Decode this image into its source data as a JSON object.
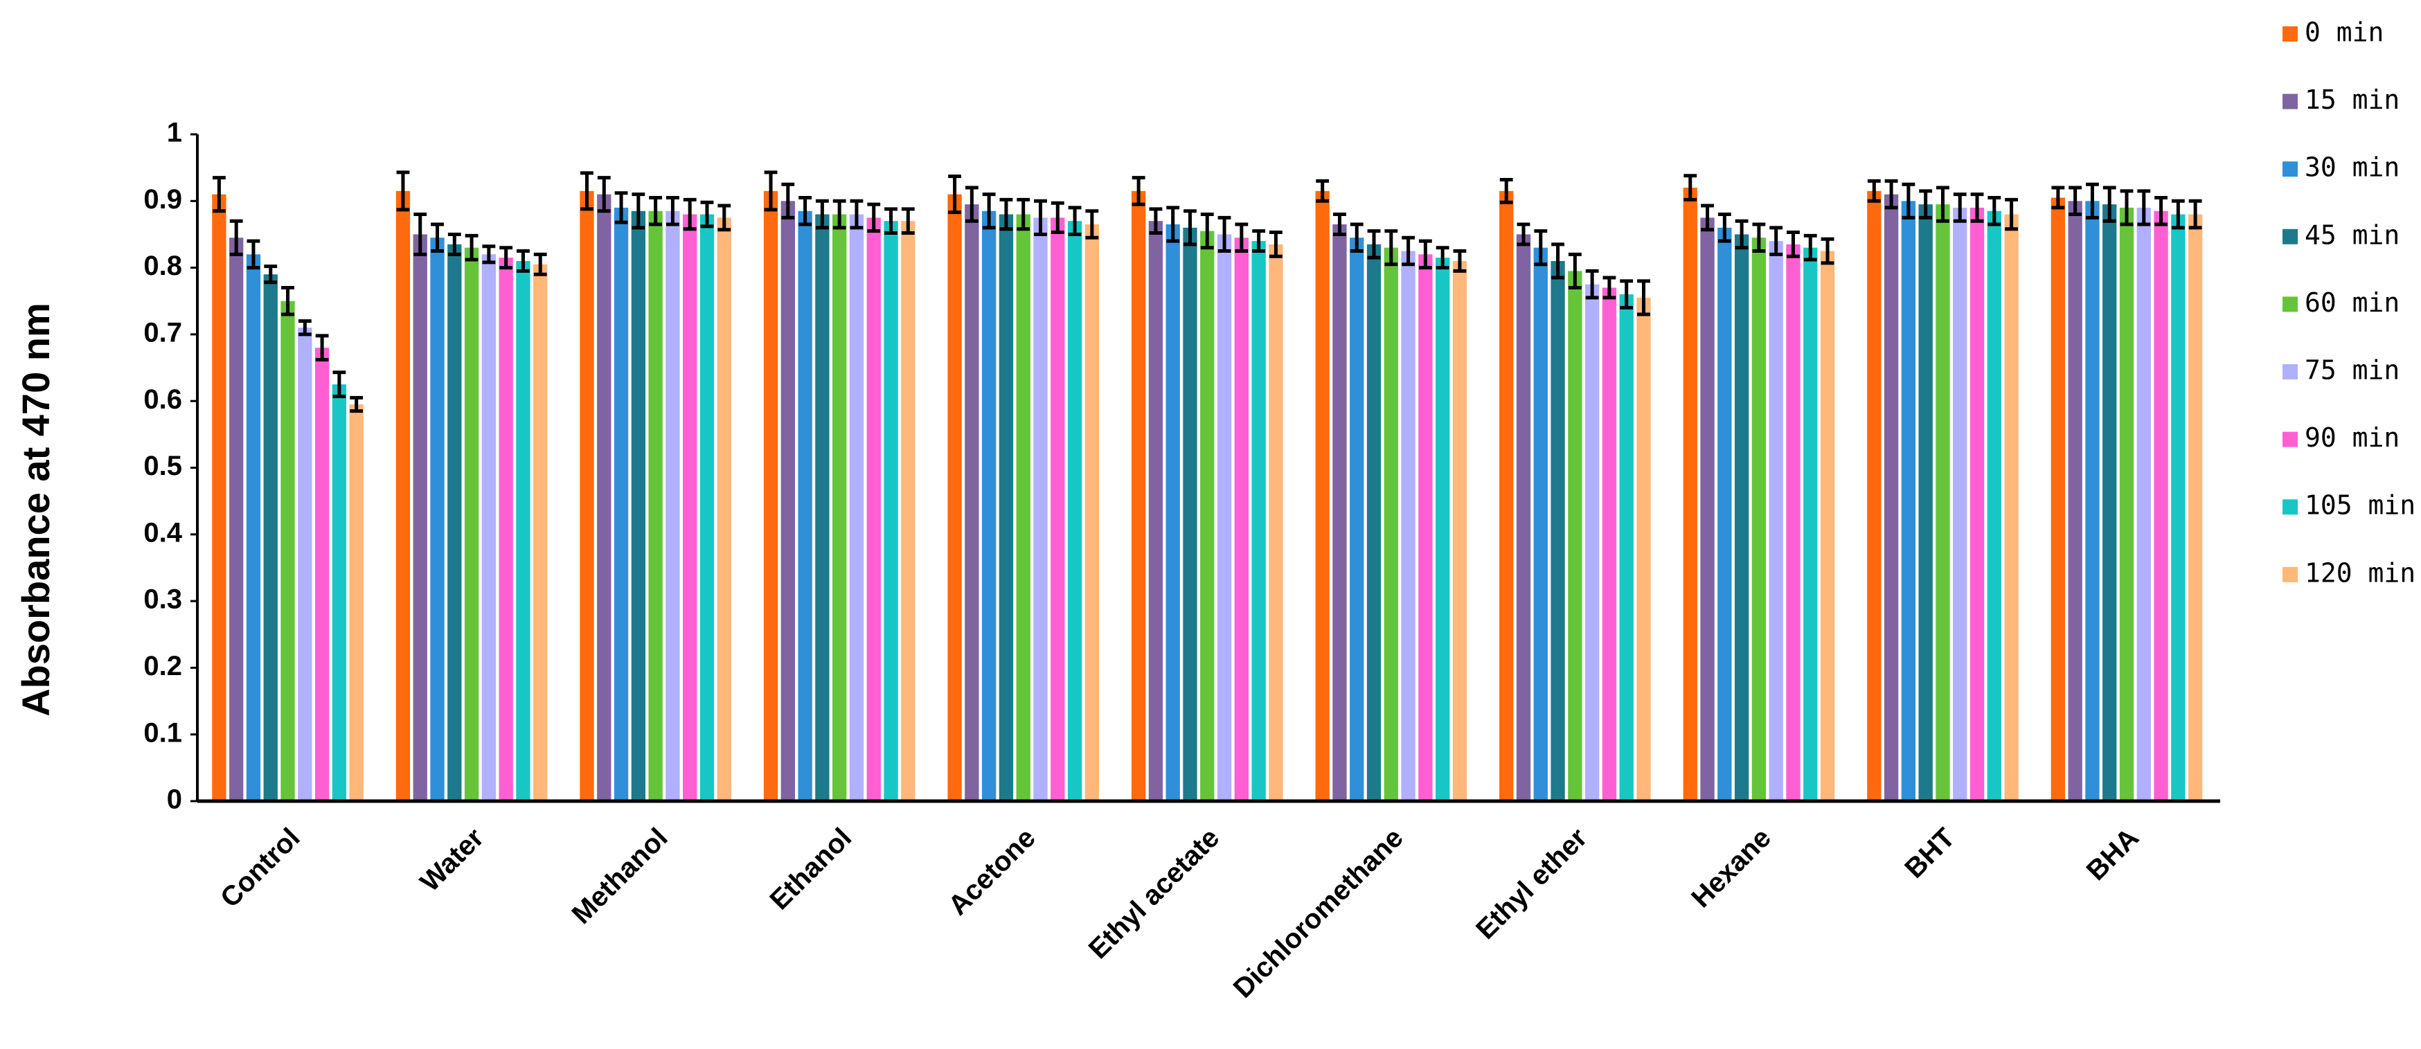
{
  "chart_data": {
    "type": "bar",
    "y_label": "Absorbance at 470 nm",
    "categories": [
      "Control",
      "Water",
      "Methanol",
      "Ethanol",
      "Acetone",
      "Ethyl acetate",
      "Dichloromethane",
      "Ethyl ether",
      "Hexane",
      "BHT",
      "BHA"
    ],
    "series": [
      {
        "name": "0 min",
        "color": "#ff6a0e",
        "values": [
          0.91,
          0.915,
          0.915,
          0.915,
          0.91,
          0.915,
          0.915,
          0.915,
          0.92,
          0.915,
          0.905
        ],
        "errors": [
          0.025,
          0.028,
          0.027,
          0.028,
          0.027,
          0.02,
          0.015,
          0.017,
          0.018,
          0.015,
          0.015
        ]
      },
      {
        "name": "15 min",
        "color": "#8064a2",
        "values": [
          0.845,
          0.85,
          0.91,
          0.9,
          0.895,
          0.87,
          0.865,
          0.85,
          0.875,
          0.91,
          0.9
        ],
        "errors": [
          0.025,
          0.03,
          0.025,
          0.025,
          0.025,
          0.018,
          0.015,
          0.015,
          0.018,
          0.02,
          0.02
        ]
      },
      {
        "name": "30 min",
        "color": "#2f8fd8",
        "values": [
          0.82,
          0.845,
          0.89,
          0.885,
          0.885,
          0.865,
          0.845,
          0.83,
          0.86,
          0.9,
          0.9
        ],
        "errors": [
          0.02,
          0.02,
          0.022,
          0.02,
          0.025,
          0.025,
          0.02,
          0.025,
          0.02,
          0.025,
          0.025
        ]
      },
      {
        "name": "45 min",
        "color": "#1d7a8c",
        "values": [
          0.79,
          0.835,
          0.885,
          0.88,
          0.88,
          0.86,
          0.835,
          0.81,
          0.85,
          0.895,
          0.895
        ],
        "errors": [
          0.012,
          0.015,
          0.025,
          0.02,
          0.022,
          0.025,
          0.02,
          0.025,
          0.02,
          0.02,
          0.025
        ]
      },
      {
        "name": "60 min",
        "color": "#66c43a",
        "values": [
          0.75,
          0.83,
          0.885,
          0.88,
          0.88,
          0.855,
          0.83,
          0.795,
          0.845,
          0.895,
          0.89
        ],
        "errors": [
          0.02,
          0.018,
          0.02,
          0.02,
          0.022,
          0.025,
          0.025,
          0.025,
          0.02,
          0.025,
          0.025
        ]
      },
      {
        "name": "75 min",
        "color": "#b0b0ff",
        "values": [
          0.71,
          0.82,
          0.885,
          0.88,
          0.875,
          0.85,
          0.825,
          0.775,
          0.84,
          0.89,
          0.89
        ],
        "errors": [
          0.01,
          0.012,
          0.02,
          0.02,
          0.025,
          0.025,
          0.02,
          0.02,
          0.02,
          0.02,
          0.025
        ]
      },
      {
        "name": "90 min",
        "color": "#ff5fd2",
        "values": [
          0.68,
          0.815,
          0.88,
          0.875,
          0.875,
          0.845,
          0.82,
          0.77,
          0.835,
          0.89,
          0.885
        ],
        "errors": [
          0.018,
          0.015,
          0.022,
          0.02,
          0.022,
          0.02,
          0.02,
          0.015,
          0.018,
          0.02,
          0.02
        ]
      },
      {
        "name": "105 min",
        "color": "#19c6c6",
        "values": [
          0.625,
          0.81,
          0.88,
          0.87,
          0.87,
          0.84,
          0.815,
          0.76,
          0.83,
          0.885,
          0.88
        ],
        "errors": [
          0.018,
          0.015,
          0.018,
          0.018,
          0.02,
          0.015,
          0.015,
          0.02,
          0.018,
          0.02,
          0.02
        ]
      },
      {
        "name": "120 min",
        "color": "#ffb77a",
        "values": [
          0.595,
          0.805,
          0.875,
          0.87,
          0.865,
          0.835,
          0.81,
          0.755,
          0.825,
          0.88,
          0.88
        ],
        "errors": [
          0.01,
          0.015,
          0.018,
          0.018,
          0.02,
          0.018,
          0.015,
          0.025,
          0.018,
          0.022,
          0.02
        ]
      }
    ],
    "ylim": [
      0,
      1
    ],
    "yticks": [
      0,
      0.1,
      0.2,
      0.3,
      0.4,
      0.5,
      0.6,
      0.7,
      0.8,
      0.9,
      1
    ],
    "grid": false,
    "legend": "right"
  }
}
